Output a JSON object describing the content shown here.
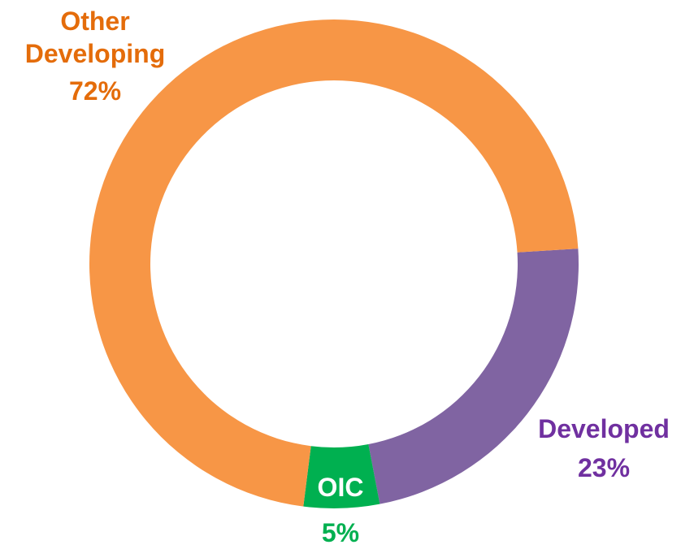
{
  "chart_data": {
    "type": "donut",
    "categories": [
      "Developed",
      "OIC",
      "Other Developing"
    ],
    "values": [
      23,
      5,
      72
    ],
    "value_labels": [
      "23%",
      "5%",
      "72%"
    ],
    "colors": [
      "#8064a2",
      "#00b050",
      "#f79646"
    ],
    "label_colors": [
      "#7030a0",
      "#00b050",
      "#e46c0a"
    ]
  }
}
